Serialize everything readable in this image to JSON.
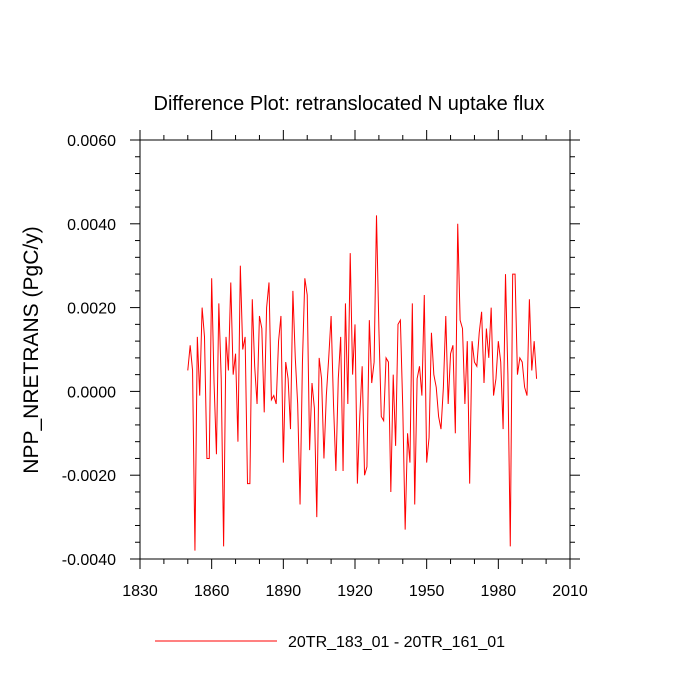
{
  "chart_data": {
    "type": "line",
    "title": "Difference Plot: retranslocated N uptake flux",
    "xlabel": "",
    "ylabel": "NPP_NRETRANS  (PgC/y)",
    "xlim": [
      1830,
      2010
    ],
    "ylim": [
      -0.004,
      0.006
    ],
    "x_ticks": [
      1830,
      1860,
      1890,
      1920,
      1950,
      1980,
      2010
    ],
    "x_tick_labels": [
      "1830",
      "1860",
      "1890",
      "1920",
      "1950",
      "1980",
      "2010"
    ],
    "y_ticks": [
      -0.004,
      -0.002,
      0.0,
      0.002,
      0.004,
      0.006
    ],
    "y_tick_labels": [
      "-0.0040",
      "-0.0020",
      "0.0000",
      "0.0020",
      "0.0040",
      "0.0060"
    ],
    "grid": false,
    "legend": "bottom-center",
    "series": [
      {
        "name": "20TR_183_01 - 20TR_161_01",
        "color": "#ff0000",
        "x_start": 1850,
        "x_step": 1,
        "values": [
          0.0005,
          0.0011,
          0.0005,
          -0.0038,
          0.0013,
          -0.0001,
          0.002,
          0.0013,
          -0.0016,
          -0.0016,
          0.0027,
          0.0002,
          -0.0015,
          0.0021,
          0.0003,
          -0.0037,
          0.0013,
          0.0005,
          0.0026,
          0.0004,
          0.0009,
          -0.0012,
          0.003,
          0.001,
          0.0013,
          -0.0022,
          -0.0022,
          0.0022,
          0.0006,
          -0.0003,
          0.0018,
          0.0015,
          -0.0005,
          0.002,
          0.0026,
          -0.0002,
          -0.0001,
          -0.0003,
          0.0012,
          0.0018,
          -0.0017,
          0.0007,
          0.0003,
          -0.0009,
          0.0024,
          0.0008,
          -0.0003,
          -0.0027,
          0.0007,
          0.0027,
          0.0023,
          -0.0014,
          0.0002,
          -0.0004,
          -0.003,
          0.0008,
          0.0003,
          -0.0016,
          -0.0001,
          0.0008,
          0.0018,
          -0.0003,
          -0.0019,
          0.0003,
          0.0013,
          -0.0019,
          0.0021,
          -0.0003,
          0.0033,
          0.0004,
          0.0016,
          -0.0022,
          -0.0006,
          0.0006,
          -0.002,
          -0.0018,
          0.0017,
          0.0002,
          0.0007,
          0.0042,
          0.0015,
          -0.0006,
          -0.0007,
          0.0008,
          0.0007,
          -0.0024,
          0.0004,
          -0.0013,
          0.0016,
          0.0017,
          -0.0004,
          -0.0033,
          -0.001,
          -0.0017,
          0.0021,
          -0.0027,
          0.0003,
          0.0006,
          -0.0001,
          0.0023,
          -0.0017,
          -0.0011,
          0.0014,
          0.0004,
          0.0001,
          -0.0006,
          -0.0009,
          0.0001,
          0.0018,
          -0.0003,
          0.0009,
          0.0011,
          -0.001,
          0.004,
          0.0017,
          0.0015,
          -0.0003,
          0.0012,
          -0.0022,
          0.0012,
          0.0007,
          0.0006,
          0.0014,
          0.0019,
          0.0002,
          0.0015,
          0.0008,
          0.002,
          -0.0001,
          0.0003,
          0.0012,
          0.0007,
          -0.0009,
          0.0028,
          0.0004,
          -0.0037,
          0.0028,
          0.0028,
          0.0004,
          0.0008,
          0.0007,
          0.0001,
          -0.0001,
          0.0022,
          0.0005,
          0.0012,
          0.0003
        ]
      }
    ]
  }
}
